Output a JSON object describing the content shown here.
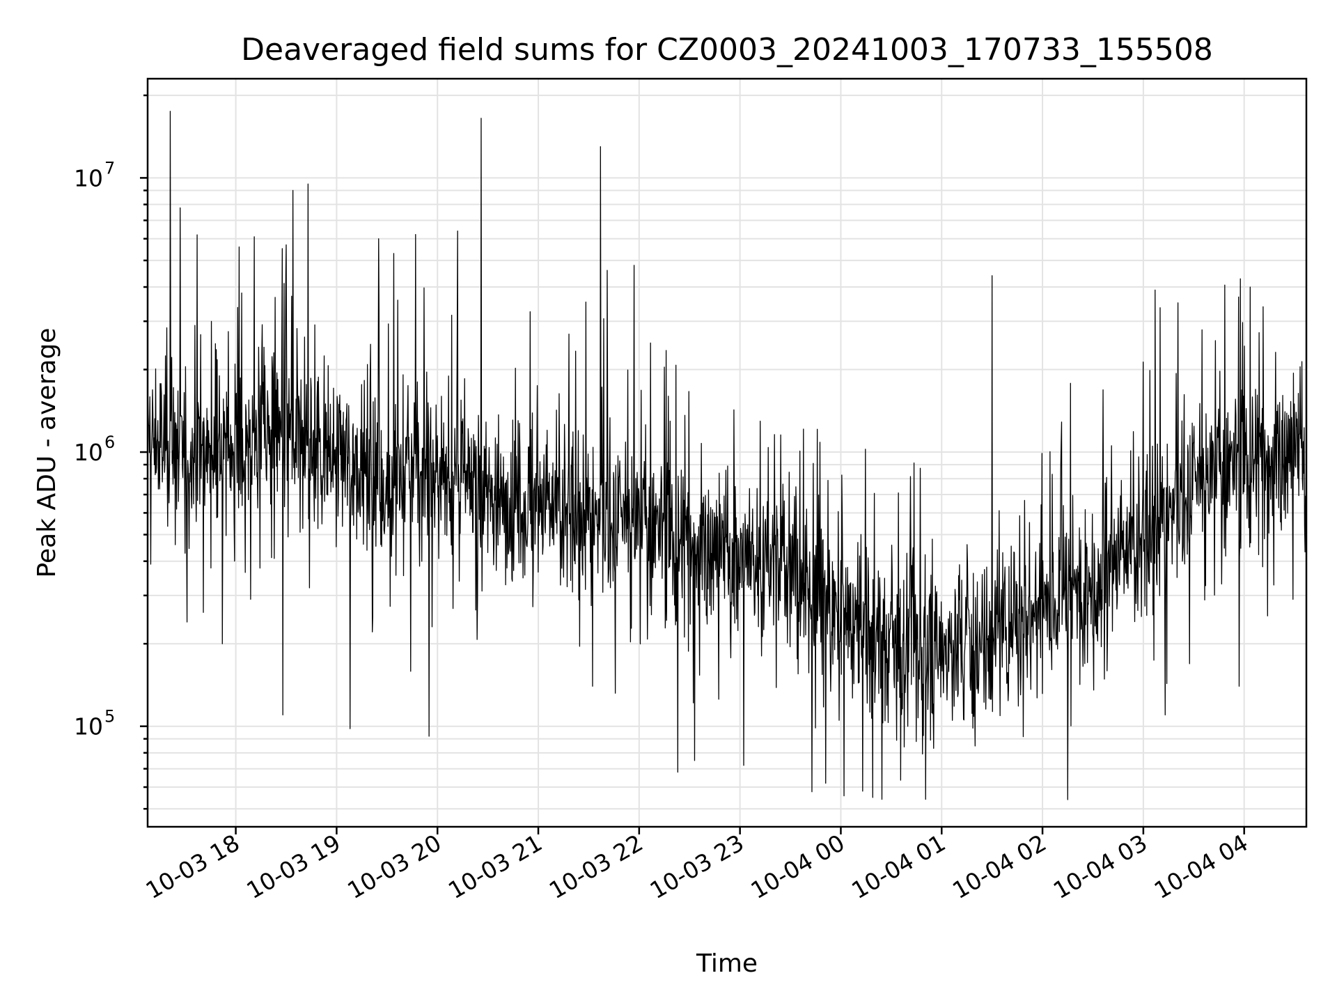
{
  "chart_data": {
    "type": "line",
    "title": "Deaveraged field sums for CZ0003_20241003_170733_155508",
    "xlabel": "Time",
    "ylabel": "Peak ADU - average",
    "yscale": "log",
    "ylim": [
      43000,
      23000000
    ],
    "xlim": [
      "2024-10-03 17:07:33",
      "2024-10-04 04:37:00"
    ],
    "grid": true,
    "color": "#000000",
    "x_ticks": [
      {
        "value": "2024-10-03 18:00",
        "label": "10-03 18"
      },
      {
        "value": "2024-10-03 19:00",
        "label": "10-03 19"
      },
      {
        "value": "2024-10-03 20:00",
        "label": "10-03 20"
      },
      {
        "value": "2024-10-03 21:00",
        "label": "10-03 21"
      },
      {
        "value": "2024-10-03 22:00",
        "label": "10-03 22"
      },
      {
        "value": "2024-10-03 23:00",
        "label": "10-03 23"
      },
      {
        "value": "2024-10-04 00:00",
        "label": "10-04 00"
      },
      {
        "value": "2024-10-04 01:00",
        "label": "10-04 01"
      },
      {
        "value": "2024-10-04 02:00",
        "label": "10-04 02"
      },
      {
        "value": "2024-10-04 03:00",
        "label": "10-04 03"
      },
      {
        "value": "2024-10-04 04:00",
        "label": "10-04 04"
      }
    ],
    "y_ticks": [
      {
        "value": 100000,
        "base": "10",
        "exp": "5"
      },
      {
        "value": 1000000,
        "base": "10",
        "exp": "6"
      },
      {
        "value": 10000000,
        "base": "10",
        "exp": "7"
      }
    ],
    "series": [
      {
        "x": [
          "2024-10-03 17:07",
          "2024-10-03 17:30",
          "2024-10-03 18:00",
          "2024-10-03 18:30",
          "2024-10-03 19:00",
          "2024-10-03 19:30",
          "2024-10-03 20:00",
          "2024-10-03 20:30",
          "2024-10-03 21:00",
          "2024-10-03 21:30",
          "2024-10-03 22:00",
          "2024-10-03 22:30",
          "2024-10-03 23:00",
          "2024-10-03 23:30",
          "2024-10-04 00:00",
          "2024-10-04 00:30",
          "2024-10-04 01:00",
          "2024-10-04 01:30",
          "2024-10-04 02:00",
          "2024-10-04 02:30",
          "2024-10-04 03:00",
          "2024-10-04 03:30",
          "2024-10-04 04:00",
          "2024-10-04 04:37"
        ],
        "values": [
          1100000,
          1000000,
          1050000,
          1150000,
          950000,
          800000,
          850000,
          700000,
          650000,
          580000,
          550000,
          480000,
          420000,
          370000,
          260000,
          200000,
          190000,
          220000,
          280000,
          350000,
          480000,
          750000,
          950000,
          1050000
        ],
        "peaks": [
          {
            "x": "2024-10-03 17:21",
            "value": 17500000
          },
          {
            "x": "2024-10-03 17:37",
            "value": 6200000
          },
          {
            "x": "2024-10-03 18:02",
            "value": 5600000
          },
          {
            "x": "2024-10-03 18:11",
            "value": 6100000
          },
          {
            "x": "2024-10-03 18:30",
            "value": 5700000
          },
          {
            "x": "2024-10-03 18:34",
            "value": 9000000
          },
          {
            "x": "2024-10-03 18:43",
            "value": 9500000
          },
          {
            "x": "2024-10-03 19:25",
            "value": 6000000
          },
          {
            "x": "2024-10-03 19:34",
            "value": 5300000
          },
          {
            "x": "2024-10-03 20:12",
            "value": 6400000
          },
          {
            "x": "2024-10-03 20:26",
            "value": 16500000
          },
          {
            "x": "2024-10-03 21:37",
            "value": 13000000
          },
          {
            "x": "2024-10-03 21:41",
            "value": 4600000
          },
          {
            "x": "2024-10-03 21:57",
            "value": 4800000
          },
          {
            "x": "2024-10-04 01:30",
            "value": 4400000
          },
          {
            "x": "2024-10-04 03:07",
            "value": 3900000
          }
        ],
        "dips": [
          {
            "x": "2024-10-03 17:31",
            "value": 240000
          },
          {
            "x": "2024-10-03 17:52",
            "value": 200000
          },
          {
            "x": "2024-10-03 18:28",
            "value": 110000
          },
          {
            "x": "2024-10-03 19:08",
            "value": 98000
          },
          {
            "x": "2024-10-03 19:55",
            "value": 92000
          },
          {
            "x": "2024-10-03 22:23",
            "value": 68000
          },
          {
            "x": "2024-10-03 22:33",
            "value": 75000
          },
          {
            "x": "2024-10-03 23:51",
            "value": 62000
          },
          {
            "x": "2024-10-04 00:13",
            "value": 58000
          },
          {
            "x": "2024-10-04 00:19",
            "value": 55000
          },
          {
            "x": "2024-10-04 02:15",
            "value": 54000
          },
          {
            "x": "2024-10-04 03:13",
            "value": 110000
          },
          {
            "x": "2024-10-04 03:57",
            "value": 140000
          }
        ]
      }
    ]
  }
}
